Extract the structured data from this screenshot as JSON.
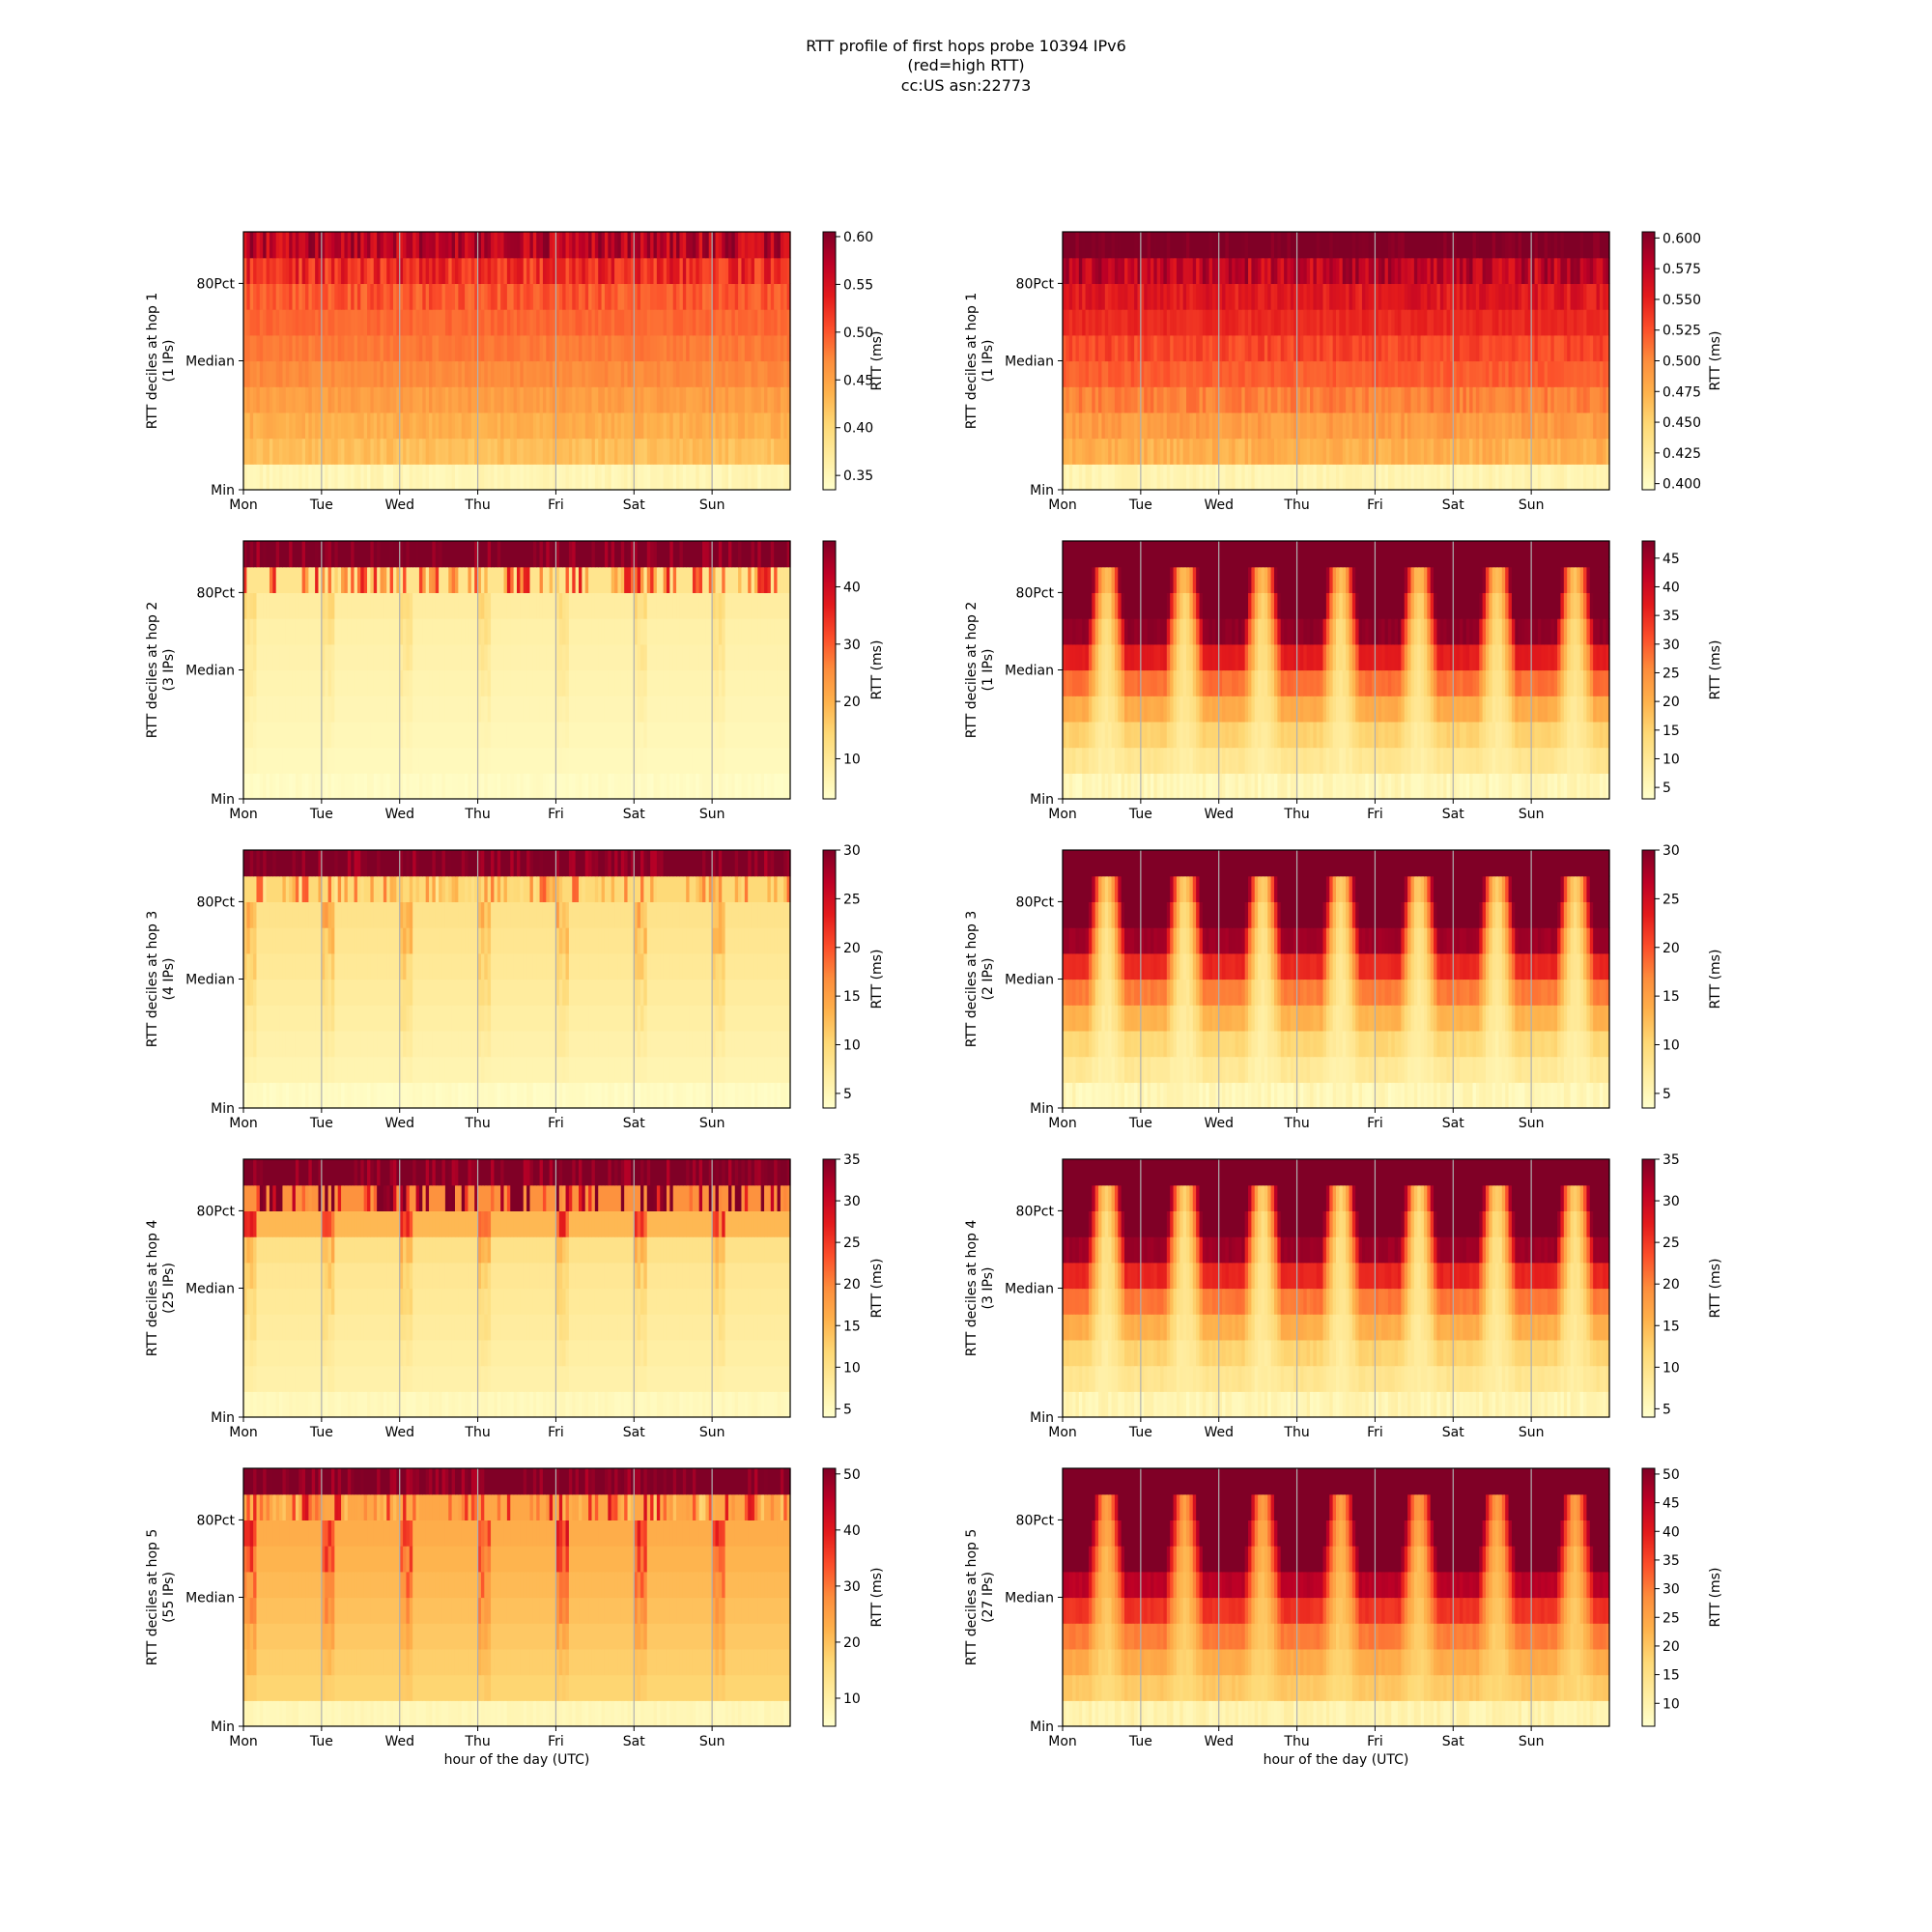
{
  "figure": {
    "title_lines": [
      "RTT profile of first hops probe 10394 IPv6",
      "(red=high RTT)",
      "cc:US asn:22773"
    ]
  },
  "axes": {
    "xlabel": "hour of the day (UTC)",
    "day_labels": [
      "Mon",
      "Tue",
      "Wed",
      "Thu",
      "Fri",
      "Sat",
      "Sun"
    ],
    "y_tick_labels": [
      "Min",
      "Median",
      "80Pct"
    ],
    "colorbar_label": "RTT (ms)"
  },
  "colors": {
    "cmap": [
      "#ffffcc",
      "#ffeda0",
      "#fed976",
      "#feb24c",
      "#fd8d3c",
      "#fc4e2a",
      "#e31a1c",
      "#bd0026",
      "#800026"
    ],
    "day_grid": "#b0b0b0"
  },
  "chart_data": {
    "type": "heatmap",
    "x_unit": "hour of week (UTC), 168 columns starting Mon 00:00",
    "y_unit": "RTT decile, 0 = Min, 10 = Max",
    "panels": [
      {
        "hop": 1,
        "side": "left",
        "ylabel_line1": "RTT deciles at hop 1",
        "ylabel_line2": "(1 IPs)",
        "value_range": [
          0.335,
          0.605
        ],
        "cbar_ticks": [
          "0.35",
          "0.40",
          "0.45",
          "0.50",
          "0.55",
          "0.60"
        ],
        "pattern": "smooth",
        "decile_values": [
          0.345,
          0.425,
          0.44,
          0.455,
          0.47,
          0.48,
          0.49,
          0.5,
          0.525,
          0.57,
          0.62
        ]
      },
      {
        "hop": 1,
        "side": "right",
        "ylabel_line1": "RTT deciles at hop 1",
        "ylabel_line2": "(1 IPs)",
        "value_range": [
          0.395,
          0.605
        ],
        "cbar_ticks": [
          "0.400",
          "0.425",
          "0.450",
          "0.475",
          "0.500",
          "0.525",
          "0.550",
          "0.575",
          "0.600"
        ],
        "pattern": "smooth",
        "decile_values": [
          0.405,
          0.475,
          0.49,
          0.505,
          0.52,
          0.53,
          0.545,
          0.555,
          0.575,
          0.61,
          0.63
        ]
      },
      {
        "hop": 2,
        "side": "left",
        "ylabel_line1": "RTT deciles at hop 2",
        "ylabel_line2": "(3 IPs)",
        "value_range": [
          3,
          48
        ],
        "cbar_ticks": [
          "10",
          "20",
          "30",
          "40"
        ],
        "pattern": "flat",
        "decile_values": [
          3.5,
          5,
          5.5,
          6,
          6.5,
          7,
          7.5,
          8.5,
          11,
          25,
          60
        ]
      },
      {
        "hop": 2,
        "side": "right",
        "ylabel_line1": "RTT deciles at hop 2",
        "ylabel_line2": "(1 IPs)",
        "value_range": [
          3,
          48
        ],
        "cbar_ticks": [
          "5",
          "10",
          "15",
          "20",
          "25",
          "30",
          "35",
          "40",
          "45"
        ],
        "pattern": "diurnal",
        "decile_values": [
          4,
          8,
          9,
          10,
          11,
          12,
          13,
          15,
          18,
          40,
          60
        ]
      },
      {
        "hop": 3,
        "side": "left",
        "ylabel_line1": "RTT deciles at hop 3",
        "ylabel_line2": "(4 IPs)",
        "value_range": [
          3.5,
          30
        ],
        "cbar_ticks": [
          "5",
          "10",
          "15",
          "20",
          "25",
          "30"
        ],
        "pattern": "flat",
        "decile_values": [
          3.8,
          5.5,
          6,
          6.5,
          7,
          7.5,
          8,
          8.5,
          10,
          13,
          40
        ]
      },
      {
        "hop": 3,
        "side": "right",
        "ylabel_line1": "RTT deciles at hop 3",
        "ylabel_line2": "(2 IPs)",
        "value_range": [
          3.5,
          30
        ],
        "cbar_ticks": [
          "5",
          "10",
          "15",
          "20",
          "25",
          "30"
        ],
        "pattern": "diurnal",
        "decile_values": [
          4,
          6,
          6.5,
          7,
          7.5,
          8,
          8.5,
          9.5,
          11,
          13,
          40
        ]
      },
      {
        "hop": 4,
        "side": "left",
        "ylabel_line1": "RTT deciles at hop 4",
        "ylabel_line2": "(25 IPs)",
        "value_range": [
          4,
          35
        ],
        "cbar_ticks": [
          "5",
          "10",
          "15",
          "20",
          "25",
          "30",
          "35"
        ],
        "pattern": "flat",
        "decile_values": [
          5,
          7,
          7.5,
          8,
          8.5,
          9,
          10,
          15,
          19,
          30,
          50
        ]
      },
      {
        "hop": 4,
        "side": "right",
        "ylabel_line1": "RTT deciles at hop 4",
        "ylabel_line2": "(3 IPs)",
        "value_range": [
          4,
          35
        ],
        "cbar_ticks": [
          "5",
          "10",
          "15",
          "20",
          "25",
          "30",
          "35"
        ],
        "pattern": "diurnal",
        "decile_values": [
          5,
          7.5,
          8,
          8.5,
          9,
          9.5,
          10,
          11,
          12.5,
          15,
          50
        ]
      },
      {
        "hop": 5,
        "side": "left",
        "ylabel_line1": "RTT deciles at hop 5",
        "ylabel_line2": "(55 IPs)",
        "value_range": [
          5,
          51
        ],
        "cbar_ticks": [
          "10",
          "20",
          "30",
          "40",
          "50"
        ],
        "pattern": "flat",
        "decile_values": [
          7,
          17,
          18,
          19,
          20,
          21,
          22,
          23,
          24,
          28,
          60
        ]
      },
      {
        "hop": 5,
        "side": "right",
        "ylabel_line1": "RTT deciles at hop 5",
        "ylabel_line2": "(27 IPs)",
        "value_range": [
          6,
          51
        ],
        "cbar_ticks": [
          "10",
          "15",
          "20",
          "25",
          "30",
          "35",
          "40",
          "45",
          "50"
        ],
        "pattern": "diurnal",
        "decile_values": [
          8,
          17,
          18,
          19,
          20,
          21,
          22,
          24,
          26,
          30,
          60
        ]
      }
    ]
  }
}
